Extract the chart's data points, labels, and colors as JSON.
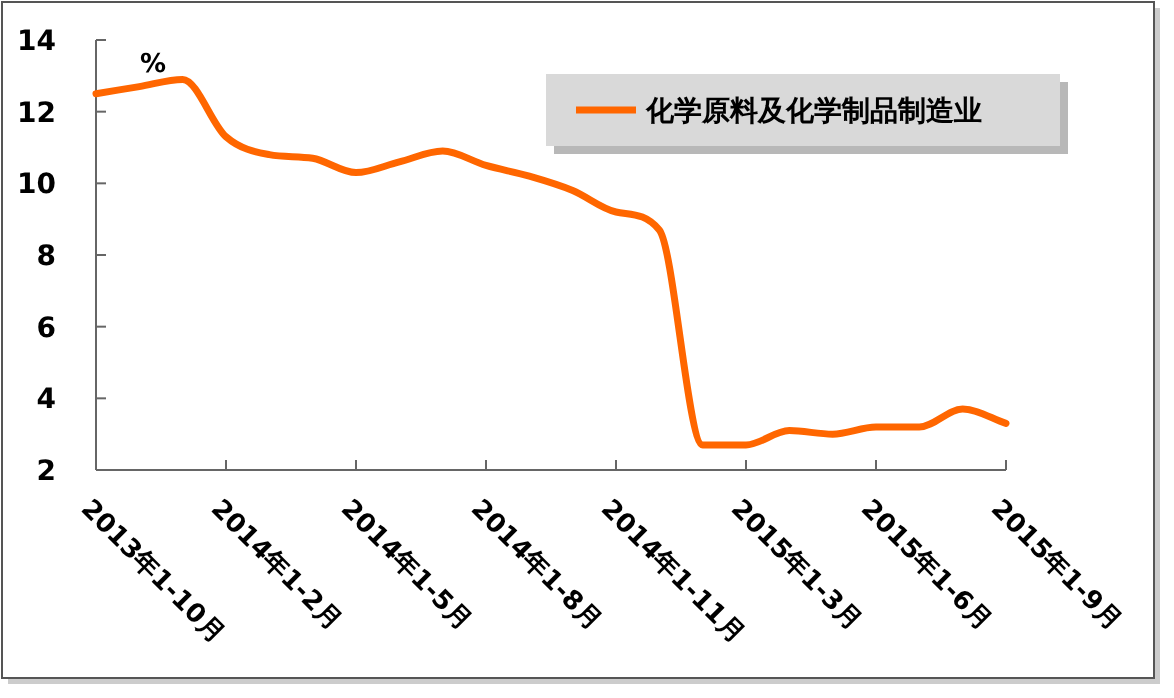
{
  "chart_data": {
    "type": "line",
    "categories": [
      "2013年1-10月",
      null,
      null,
      "2014年1-2月",
      null,
      null,
      "2014年1-5月",
      null,
      null,
      "2014年1-8月",
      null,
      null,
      "2014年1-11月",
      null,
      null,
      "2015年1-3月",
      null,
      null,
      "2015年1-6月",
      null,
      null,
      "2015年1-9月"
    ],
    "series": [
      {
        "name": "化学原料及化学制品制造业",
        "color": "#ff6600",
        "values": [
          12.5,
          12.7,
          12.9,
          11.3,
          10.8,
          10.7,
          10.3,
          10.6,
          10.9,
          10.5,
          10.2,
          9.8,
          9.2,
          8.7,
          2.7,
          2.7,
          3.1,
          3.0,
          3.2,
          3.2,
          3.7,
          3.3
        ]
      }
    ],
    "ylim": [
      2,
      14
    ],
    "yticks": [
      2,
      4,
      6,
      8,
      10,
      12,
      14
    ],
    "annotations": [
      "%"
    ],
    "legend": "top right",
    "grid": false,
    "marker": "none",
    "line_style": "solid"
  }
}
